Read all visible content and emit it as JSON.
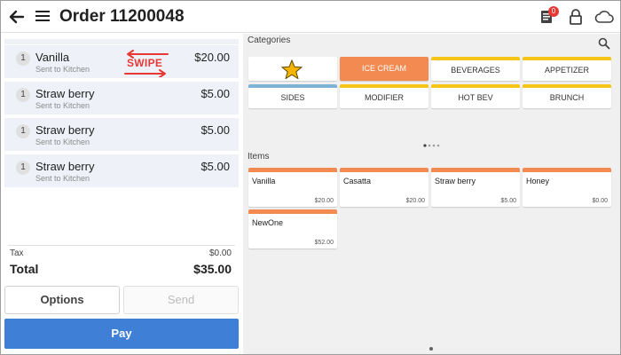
{
  "header": {
    "title": "Order 11200048",
    "notification_count": "0",
    "icons": [
      "back-arrow-icon",
      "hamburger-menu-icon",
      "receipt-icon",
      "lock-icon",
      "cloud-icon"
    ]
  },
  "order": {
    "items": [
      {
        "qty": "1",
        "name": "Vanilla",
        "status": "Sent to Kitchen",
        "price": "$20.00"
      },
      {
        "qty": "1",
        "name": "Straw berry",
        "status": "Sent to Kitchen",
        "price": "$5.00"
      },
      {
        "qty": "1",
        "name": "Straw berry",
        "status": "Sent to Kitchen",
        "price": "$5.00"
      },
      {
        "qty": "1",
        "name": "Straw berry",
        "status": "Sent to Kitchen",
        "price": "$5.00"
      }
    ],
    "swipe_annotation": "SWIPE",
    "tax_label": "Tax",
    "tax_value": "$0.00",
    "total_label": "Total",
    "total_value": "$35.00"
  },
  "actions": {
    "options_label": "Options",
    "send_label": "Send",
    "pay_label": "Pay"
  },
  "categories": {
    "label": "Categories",
    "items": [
      {
        "name": "",
        "icon": "star-icon",
        "bar_color": "#ffffff",
        "active": false
      },
      {
        "name": "ICE CREAM",
        "bar_color": "#f28a52",
        "active": true
      },
      {
        "name": "BEVERAGES",
        "bar_color": "#f5c518",
        "active": false
      },
      {
        "name": "APPETIZER",
        "bar_color": "#f5c518",
        "active": false
      },
      {
        "name": "SIDES",
        "bar_color": "#7fb3d5",
        "active": false
      },
      {
        "name": "MODIFIER",
        "bar_color": "#f5c518",
        "active": false
      },
      {
        "name": "HOT BEV",
        "bar_color": "#f5c518",
        "active": false
      },
      {
        "name": "BRUNCH",
        "bar_color": "#f5c518",
        "active": false
      }
    ]
  },
  "items_section": {
    "label": "Items",
    "items": [
      {
        "name": "Vanilla",
        "price": "$20.00"
      },
      {
        "name": "Casatta",
        "price": "$20.00"
      },
      {
        "name": "Straw berry",
        "price": "$5.00"
      },
      {
        "name": "Honey",
        "price": "$0.00"
      },
      {
        "name": "NewOne",
        "price": "$52.00"
      }
    ]
  },
  "colors": {
    "accent_orange": "#f28a52",
    "pay_blue": "#3f7fd6",
    "swipe_red": "#e53935",
    "category_yellow": "#f5c518",
    "category_blue": "#7fb3d5"
  }
}
